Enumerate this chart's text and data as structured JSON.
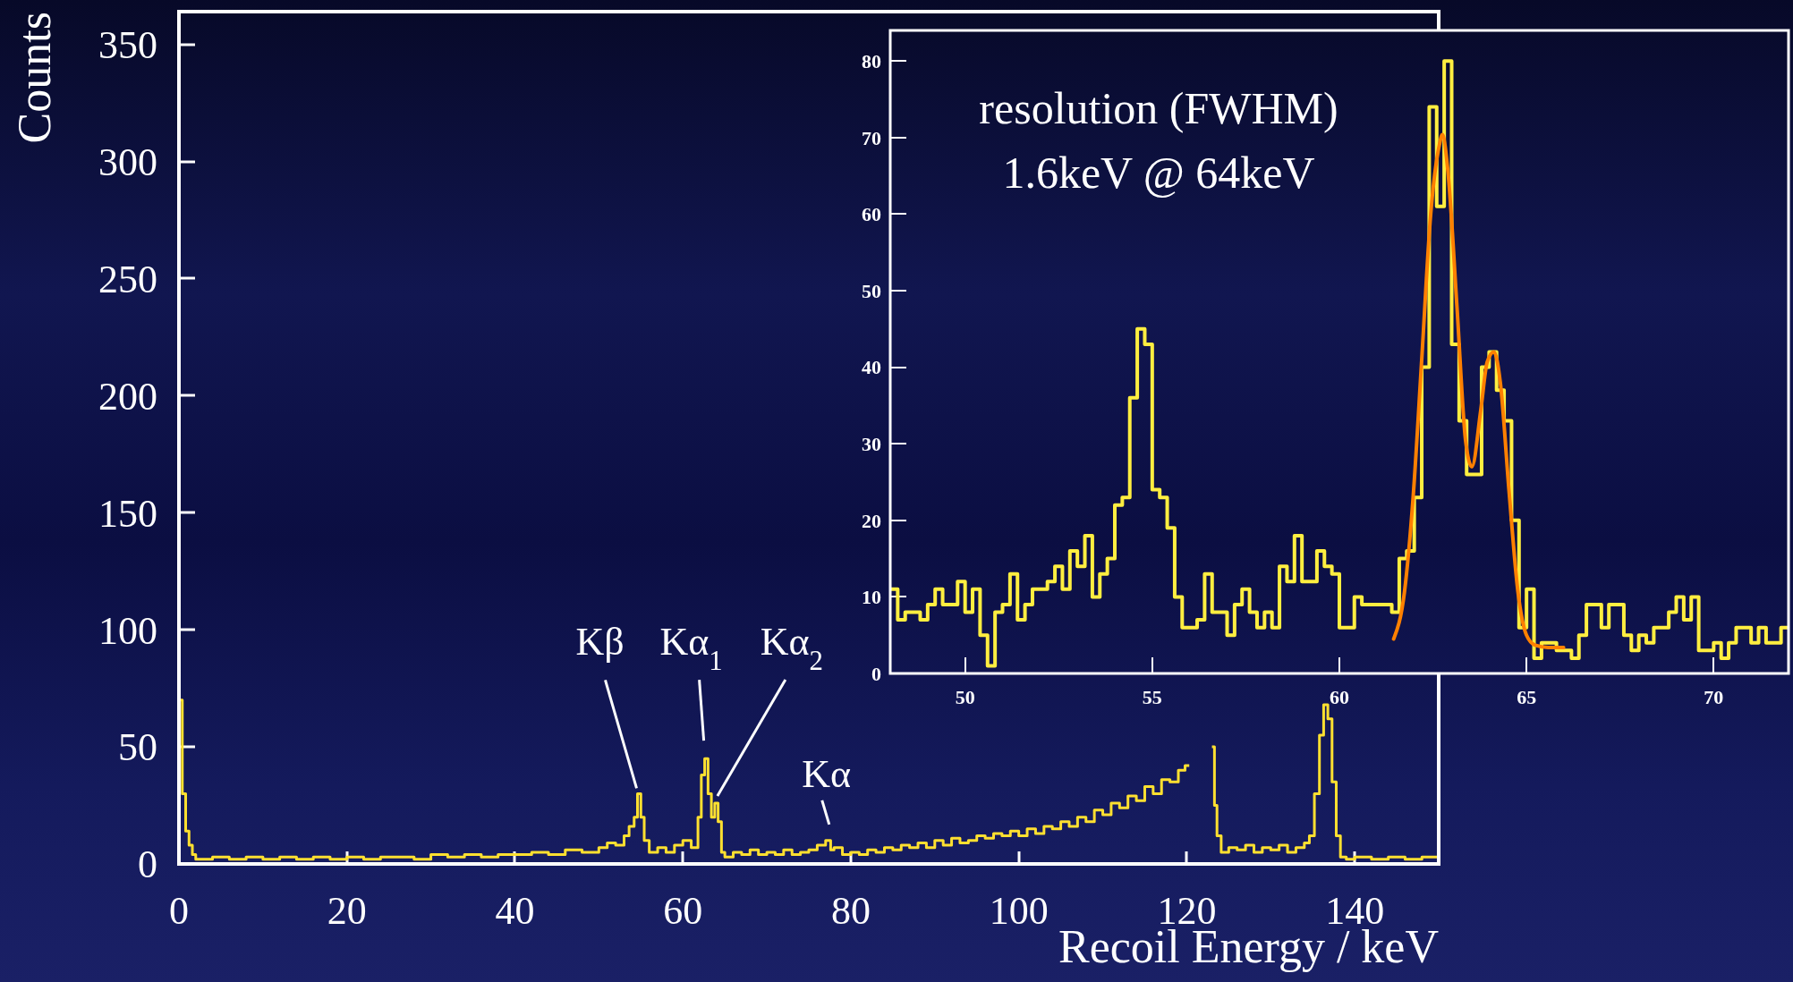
{
  "chart_data": [
    {
      "type": "step",
      "xlabel": "Recoil Energy / keV",
      "ylabel": "Counts",
      "color": "#ffe030",
      "x": [
        0,
        0.4,
        0.8,
        1.2,
        1.6,
        2,
        4,
        6,
        8,
        10,
        12,
        14,
        16,
        18,
        20,
        22,
        24,
        26,
        28,
        30,
        32,
        34,
        36,
        38,
        40,
        42,
        44,
        46,
        48,
        50,
        51,
        52,
        53,
        53.6,
        54.2,
        54.6,
        55,
        55.4,
        56,
        57,
        58,
        59,
        60,
        61,
        61.8,
        62.2,
        62.6,
        63,
        63.4,
        63.8,
        64.2,
        64.6,
        65,
        66,
        67,
        68,
        69,
        70,
        71,
        72,
        73,
        74,
        75,
        76,
        77,
        77.6,
        78,
        79,
        80,
        81,
        82,
        83,
        84,
        85,
        86,
        87,
        88,
        89,
        90,
        91,
        92,
        93,
        94,
        95,
        96,
        97,
        98,
        99,
        100,
        101,
        102,
        103,
        104,
        105,
        106,
        107,
        108,
        109,
        110,
        111,
        112,
        113,
        114,
        115,
        116,
        117,
        118,
        119,
        119.8,
        120.3,
        123,
        123.3,
        123.6,
        124.1,
        125,
        126,
        127,
        128,
        129,
        130,
        131,
        132,
        133,
        134,
        134.6,
        135.2,
        135.8,
        136.3,
        136.8,
        137.3,
        137.8,
        138.3,
        139,
        140,
        142,
        144,
        146,
        148,
        150
      ],
      "values": [
        70,
        30,
        14,
        8,
        4,
        2,
        3,
        2,
        3,
        2,
        3,
        2,
        3,
        2,
        3,
        2,
        3,
        3,
        2,
        4,
        3,
        4,
        3,
        4,
        4,
        5,
        4,
        6,
        5,
        7,
        9,
        8,
        12,
        16,
        20,
        30,
        20,
        10,
        5,
        7,
        5,
        8,
        10,
        7,
        20,
        38,
        45,
        30,
        20,
        26,
        18,
        5,
        3,
        5,
        4,
        6,
        4,
        5,
        4,
        6,
        4,
        5,
        6,
        8,
        10,
        6,
        7,
        4,
        5,
        4,
        6,
        5,
        7,
        6,
        8,
        7,
        9,
        7,
        10,
        8,
        11,
        9,
        10,
        12,
        11,
        13,
        12,
        14,
        12,
        15,
        13,
        16,
        15,
        18,
        16,
        20,
        18,
        23,
        21,
        26,
        24,
        29,
        27,
        33,
        30,
        36,
        35,
        40,
        42,
        null,
        50,
        25,
        12,
        5,
        7,
        6,
        8,
        5,
        7,
        6,
        8,
        5,
        7,
        9,
        12,
        30,
        55,
        68,
        62,
        35,
        12,
        3,
        2,
        3,
        2,
        3,
        2,
        3,
        2
      ],
      "xlim": [
        0,
        150
      ],
      "ylim": [
        0,
        364
      ],
      "xticks": [
        0,
        20,
        40,
        60,
        80,
        100,
        120,
        140
      ],
      "yticks": [
        0,
        50,
        100,
        150,
        200,
        250,
        300,
        350
      ],
      "annotations": [
        {
          "text": "Kβ",
          "x": 54.6,
          "y": 30
        },
        {
          "text": "Kα$_{1}$",
          "x": 62.6,
          "y": 45
        },
        {
          "text": "Kα$_{2}$",
          "x": 63.8,
          "y": 26
        },
        {
          "text": "Kα",
          "x": 77,
          "y": 10
        }
      ]
    },
    {
      "type": "histogram",
      "color": "#ffee40",
      "bins": [
        48,
        48.2,
        48.4,
        48.6,
        48.8,
        49,
        49.2,
        49.4,
        49.6,
        49.8,
        50,
        50.2,
        50.4,
        50.6,
        50.8,
        51,
        51.2,
        51.4,
        51.6,
        51.8,
        52,
        52.2,
        52.4,
        52.6,
        52.8,
        53,
        53.2,
        53.4,
        53.6,
        53.8,
        54,
        54.2,
        54.4,
        54.6,
        54.8,
        55,
        55.2,
        55.4,
        55.6,
        55.8,
        56,
        56.2,
        56.4,
        56.6,
        56.8,
        57,
        57.2,
        57.4,
        57.6,
        57.8,
        58,
        58.2,
        58.4,
        58.6,
        58.8,
        59,
        59.2,
        59.4,
        59.6,
        59.8,
        60,
        60.2,
        60.4,
        60.6,
        60.8,
        61,
        61.2,
        61.4,
        61.6,
        61.8,
        62,
        62.2,
        62.4,
        62.6,
        62.8,
        63,
        63.2,
        63.4,
        63.6,
        63.8,
        64,
        64.2,
        64.4,
        64.6,
        64.8,
        65,
        65.2,
        65.4,
        65.6,
        65.8,
        66,
        66.2,
        66.4,
        66.6,
        66.8,
        67,
        67.2,
        67.4,
        67.6,
        67.8,
        68,
        68.2,
        68.4,
        68.6,
        68.8,
        69,
        69.2,
        69.4,
        69.6,
        69.8,
        70,
        70.2,
        70.4,
        70.6,
        70.8,
        71,
        71.2,
        71.4,
        71.6,
        71.8,
        72
      ],
      "values": [
        11,
        7,
        8,
        8,
        7,
        9,
        11,
        9,
        9,
        12,
        8,
        11,
        5,
        1,
        8,
        9,
        13,
        7,
        9,
        11,
        11,
        12,
        14,
        11,
        16,
        14,
        18,
        10,
        13,
        15,
        22,
        23,
        36,
        45,
        43,
        24,
        23,
        19,
        10,
        6,
        6,
        7,
        13,
        8,
        8,
        5,
        9,
        11,
        8,
        6,
        8,
        6,
        14,
        12,
        18,
        12,
        12,
        16,
        14,
        13,
        6,
        6,
        10,
        9,
        9,
        9,
        9,
        8,
        15,
        16,
        23,
        40,
        74,
        61,
        80,
        43,
        33,
        26,
        26,
        40,
        42,
        37,
        33,
        20,
        6,
        11,
        2,
        4,
        4,
        3,
        3,
        2,
        5,
        9,
        9,
        6,
        9,
        9,
        5,
        3,
        5,
        4,
        6,
        6,
        8,
        10,
        7,
        10,
        3,
        3,
        4,
        2,
        4,
        6,
        6,
        4,
        6,
        4,
        4,
        6
      ],
      "series": [
        {
          "type": "line",
          "color": "#ff8000",
          "x": [
            61.45,
            61.74,
            61.97,
            62.2,
            62.44,
            62.67,
            62.75,
            62.9,
            63.14,
            63.37,
            63.54,
            63.78,
            63.95,
            64.13,
            64.3,
            64.53,
            64.77,
            65.0,
            65.23,
            65.58,
            65.99
          ],
          "values": [
            4.5,
            10.7,
            23,
            41,
            60,
            69,
            70.4,
            65.6,
            48,
            30.5,
            27,
            34.5,
            40.7,
            42,
            38,
            24,
            10.7,
            5,
            3.7,
            3.4,
            3.4
          ]
        }
      ],
      "xlim": [
        48,
        72
      ],
      "ylim": [
        0,
        84
      ],
      "xticks": [
        50,
        55,
        60,
        65,
        70
      ],
      "yticks": [
        0,
        10,
        20,
        30,
        40,
        50,
        60,
        70,
        80
      ],
      "annotations": [
        "resolution (FWHM)",
        "1.6keV @ 64keV"
      ]
    }
  ]
}
